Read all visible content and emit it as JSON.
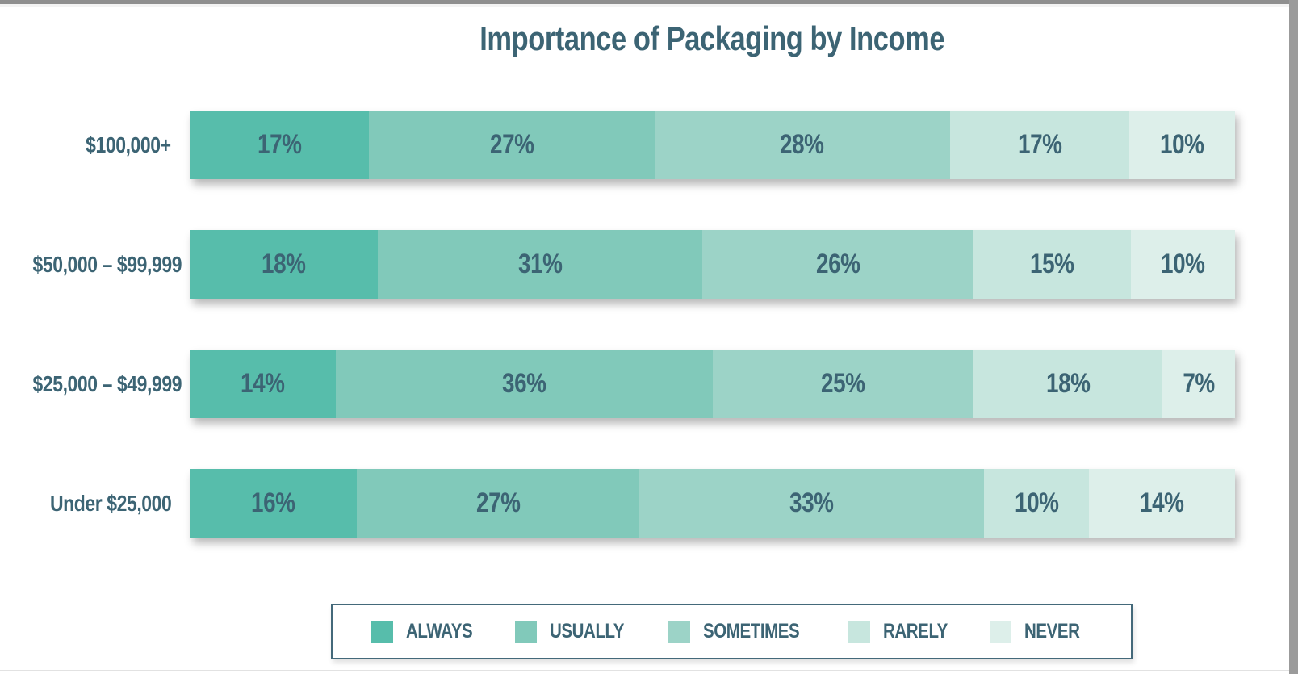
{
  "colors": {
    "text": "#3c6474",
    "legend_border": "#44697a",
    "canvas_bg": "#ffffff",
    "screen_edge_gray": "#9b9b9b"
  },
  "chart_data": {
    "type": "bar",
    "stacked": true,
    "orientation": "horizontal",
    "title": "Importance of Packaging by Income",
    "categories": [
      "$100,000+",
      "$50,000 – $99,999",
      "$25,000 – $49,999",
      "Under $25,000"
    ],
    "series": [
      {
        "name": "ALWAYS",
        "color": "#57bdab",
        "values": [
          17,
          18,
          14,
          16
        ]
      },
      {
        "name": "USUALLY",
        "color": "#81c9ba",
        "values": [
          27,
          31,
          36,
          27
        ]
      },
      {
        "name": "SOMETIMES",
        "color": "#9cd3c7",
        "values": [
          28,
          26,
          25,
          33
        ]
      },
      {
        "name": "RARELY",
        "color": "#c7e6de",
        "values": [
          17,
          15,
          18,
          10
        ]
      },
      {
        "name": "NEVER",
        "color": "#ddefea",
        "values": [
          10,
          10,
          7,
          14
        ]
      }
    ],
    "value_suffix": "%",
    "xlim": [
      0,
      100
    ],
    "grid": false,
    "legend_position": "bottom",
    "legend_labels": [
      "ALWAYS",
      "USUALLY",
      "SOMETIMES",
      "RARELY",
      "NEVER"
    ]
  }
}
